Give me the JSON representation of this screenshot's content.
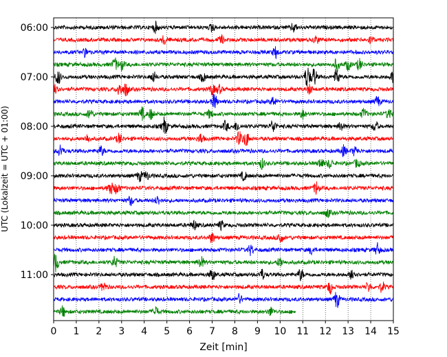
{
  "chart_data": {
    "type": "line",
    "title": "",
    "xlabel": "Zeit  [min]",
    "ylabel": "UTC (Lokalzeit = UTC + 01:00)",
    "xlim": [
      0,
      15
    ],
    "x_ticks": [
      "0",
      "1",
      "2",
      "3",
      "4",
      "5",
      "6",
      "7",
      "8",
      "9",
      "10",
      "11",
      "12",
      "13",
      "14",
      "15"
    ],
    "y_ticks": [
      "06:00",
      "07:00",
      "08:00",
      "09:00",
      "10:00",
      "11:00"
    ],
    "trace_interval_min": 15,
    "trace_start": "06:00",
    "grid": "vertical dotted",
    "trace_colors": [
      "#000000",
      "#ff0000",
      "#0000ff",
      "#008000"
    ],
    "traces": [
      {
        "start": "06:00",
        "color": "#000000",
        "end_min": 15,
        "events": [
          [
            4.5,
            1.0
          ],
          [
            7.0,
            0.8
          ],
          [
            10.6,
            0.9
          ]
        ]
      },
      {
        "start": "06:15",
        "color": "#ff0000",
        "end_min": 15,
        "events": [
          [
            4.9,
            0.9
          ],
          [
            7.4,
            0.8
          ],
          [
            11.6,
            0.7
          ],
          [
            14.0,
            0.7
          ]
        ]
      },
      {
        "start": "06:30",
        "color": "#0000ff",
        "end_min": 15,
        "events": [
          [
            1.4,
            0.8
          ],
          [
            9.8,
            1.1
          ]
        ]
      },
      {
        "start": "06:45",
        "color": "#008000",
        "end_min": 15,
        "events": [
          [
            2.7,
            1.2
          ],
          [
            3.0,
            1.0
          ],
          [
            12.5,
            1.2
          ],
          [
            13.0,
            1.0
          ],
          [
            13.5,
            1.1
          ]
        ]
      },
      {
        "start": "07:00",
        "color": "#000000",
        "end_min": 15,
        "events": [
          [
            0.2,
            1.4
          ],
          [
            4.4,
            1.0
          ],
          [
            6.6,
            0.9
          ],
          [
            11.2,
            2.2
          ],
          [
            11.5,
            1.8
          ],
          [
            12.5,
            1.6
          ],
          [
            15.0,
            1.2
          ]
        ]
      },
      {
        "start": "07:15",
        "color": "#ff0000",
        "end_min": 15,
        "events": [
          [
            0.1,
            1.6
          ],
          [
            2.9,
            1.4
          ],
          [
            3.2,
            1.3
          ],
          [
            7.0,
            1.0
          ],
          [
            7.3,
            0.8
          ],
          [
            11.3,
            0.9
          ]
        ]
      },
      {
        "start": "07:30",
        "color": "#0000ff",
        "end_min": 15,
        "events": [
          [
            7.1,
            1.5
          ],
          [
            9.7,
            0.9
          ],
          [
            14.3,
            1.0
          ]
        ]
      },
      {
        "start": "07:45",
        "color": "#008000",
        "end_min": 15,
        "events": [
          [
            1.6,
            1.0
          ],
          [
            3.9,
            1.2
          ],
          [
            4.3,
            1.0
          ],
          [
            6.9,
            0.8
          ],
          [
            11.0,
            0.9
          ],
          [
            13.7,
            1.0
          ],
          [
            14.8,
            1.0
          ]
        ]
      },
      {
        "start": "08:00",
        "color": "#000000",
        "end_min": 15,
        "events": [
          [
            4.9,
            1.8
          ],
          [
            7.6,
            1.0
          ],
          [
            8.1,
            0.9
          ],
          [
            9.7,
            1.3
          ],
          [
            12.7,
            0.9
          ],
          [
            14.2,
            1.0
          ]
        ]
      },
      {
        "start": "08:15",
        "color": "#ff0000",
        "end_min": 15,
        "events": [
          [
            1.5,
            0.8
          ],
          [
            2.9,
            1.0
          ],
          [
            6.5,
            1.0
          ],
          [
            8.2,
            1.4
          ],
          [
            8.5,
            1.5
          ]
        ]
      },
      {
        "start": "08:30",
        "color": "#0000ff",
        "end_min": 15,
        "events": [
          [
            0.3,
            1.2
          ],
          [
            2.1,
            0.9
          ],
          [
            12.8,
            1.0
          ],
          [
            13.3,
            0.9
          ]
        ]
      },
      {
        "start": "08:45",
        "color": "#008000",
        "end_min": 15,
        "events": [
          [
            9.2,
            1.0
          ],
          [
            11.8,
            1.0
          ],
          [
            12.2,
            0.9
          ],
          [
            13.4,
            0.8
          ]
        ]
      },
      {
        "start": "09:00",
        "color": "#000000",
        "end_min": 15,
        "events": [
          [
            3.8,
            1.0
          ],
          [
            4.1,
            0.8
          ],
          [
            8.4,
            0.9
          ]
        ]
      },
      {
        "start": "09:15",
        "color": "#ff0000",
        "end_min": 15,
        "events": [
          [
            2.5,
            1.4
          ],
          [
            2.8,
            1.2
          ],
          [
            11.6,
            1.3
          ]
        ]
      },
      {
        "start": "09:30",
        "color": "#0000ff",
        "end_min": 15,
        "events": [
          [
            3.4,
            0.9
          ],
          [
            4.6,
            0.8
          ]
        ]
      },
      {
        "start": "09:45",
        "color": "#008000",
        "end_min": 15,
        "events": [
          [
            12.1,
            0.8
          ]
        ]
      },
      {
        "start": "10:00",
        "color": "#000000",
        "end_min": 15,
        "events": [
          [
            6.2,
            0.9
          ],
          [
            7.4,
            0.8
          ]
        ]
      },
      {
        "start": "10:15",
        "color": "#ff0000",
        "end_min": 15,
        "events": [
          [
            7.0,
            1.0
          ],
          [
            10.0,
            1.2
          ]
        ]
      },
      {
        "start": "10:30",
        "color": "#0000ff",
        "end_min": 15,
        "events": [
          [
            8.7,
            1.0
          ],
          [
            11.4,
            0.8
          ],
          [
            14.3,
            1.2
          ]
        ]
      },
      {
        "start": "10:45",
        "color": "#008000",
        "end_min": 15,
        "events": [
          [
            0.1,
            1.8
          ],
          [
            2.7,
            1.1
          ],
          [
            6.5,
            1.2
          ],
          [
            10.0,
            1.0
          ]
        ]
      },
      {
        "start": "11:00",
        "color": "#000000",
        "end_min": 15,
        "events": [
          [
            7.0,
            1.2
          ],
          [
            9.2,
            1.0
          ],
          [
            10.9,
            1.1
          ],
          [
            13.2,
            1.3
          ]
        ]
      },
      {
        "start": "11:15",
        "color": "#ff0000",
        "end_min": 15,
        "events": [
          [
            2.2,
            0.9
          ],
          [
            12.2,
            1.2
          ],
          [
            13.9,
            0.9
          ],
          [
            14.5,
            1.0
          ]
        ]
      },
      {
        "start": "11:30",
        "color": "#0000ff",
        "end_min": 15,
        "events": [
          [
            8.2,
            0.9
          ],
          [
            12.5,
            1.7
          ]
        ]
      },
      {
        "start": "11:45",
        "color": "#008000",
        "end_min": 10.7,
        "events": [
          [
            0.4,
            1.0
          ],
          [
            4.5,
            1.0
          ],
          [
            9.6,
            0.8
          ]
        ]
      }
    ]
  }
}
